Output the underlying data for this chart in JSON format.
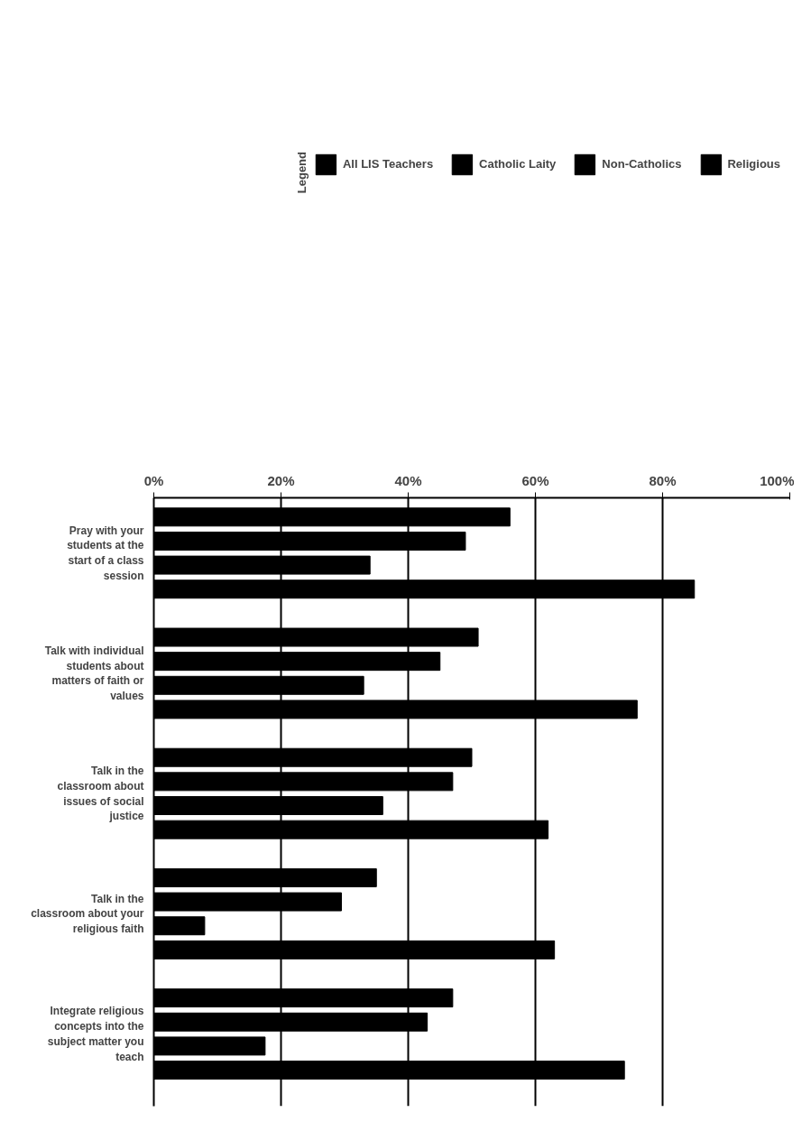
{
  "chart_data": {
    "type": "bar",
    "orientation": "horizontal",
    "legend_title": "Legend",
    "categories": [
      "Pray with your students at the start of a class session",
      "Talk with individual students about matters of faith or values",
      "Talk in the classroom about issues of social justice",
      "Talk in the classroom about your religious faith",
      "Integrate religious concepts into the subject matter you teach"
    ],
    "series": [
      {
        "name": "All LIS Teachers",
        "color": "#000000",
        "values": [
          56,
          51,
          50,
          35,
          47
        ]
      },
      {
        "name": "Catholic Laity",
        "color": "#000000",
        "values": [
          49,
          45,
          47,
          29.5,
          43
        ]
      },
      {
        "name": "Non-Catholics",
        "color": "#000000",
        "values": [
          34,
          33,
          36,
          8,
          17.5
        ]
      },
      {
        "name": "Religious",
        "color": "#000000",
        "values": [
          85,
          76,
          62,
          63,
          74
        ]
      }
    ],
    "xlim": [
      0,
      100
    ],
    "xticks": [
      {
        "value": 0,
        "label": "0%"
      },
      {
        "value": 20,
        "label": "20%"
      },
      {
        "value": 40,
        "label": "40%"
      },
      {
        "value": 60,
        "label": "60%"
      },
      {
        "value": 80,
        "label": "80%"
      },
      {
        "value": 100,
        "label": "100%"
      }
    ],
    "grid": "x",
    "legend": "top"
  }
}
